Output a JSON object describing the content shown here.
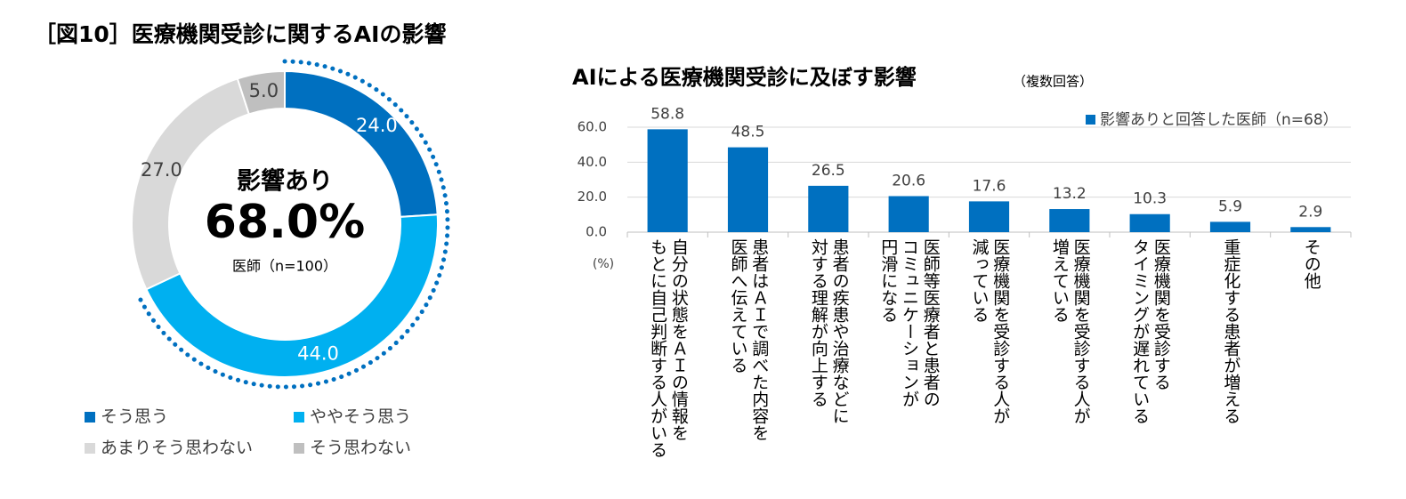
{
  "title": "［図10］医療機関受診に関するAIの影響",
  "chart_data": [
    {
      "type": "donut",
      "categories": [
        "そう思う",
        "ややそう思う",
        "あまりそう思わない",
        "そう思わない"
      ],
      "values": [
        24.0,
        44.0,
        27.0,
        5.0
      ],
      "value_labels": [
        "24.0",
        "44.0",
        "27.0",
        "5.0"
      ],
      "colors": [
        "#0070c0",
        "#00b0f0",
        "#d9d9d9",
        "#bfbfbf"
      ],
      "center_text": [
        "影響あり",
        "68.0%",
        "医師（n=100）"
      ]
    },
    {
      "type": "bar",
      "title": "AIによる医療機関受診に及ぼす影響",
      "subtitle": "（複数回答）",
      "y_label": "(%)",
      "categories": [
        "自分の状態をＡＩの情報を\nもとに自己判断する人がいる",
        "患者はＡＩで調べた内容を\n医師へ伝えている",
        "患者の疾患や治療などに\n対する理解が向上する",
        "医師等医療者と患者の\nコミュニケーションが\n円滑になる",
        "医療機関を受診する人が\n減っている",
        "医療機関を受診する人が\n増えている",
        "医療機関を受診する\nタイミングが遅れている",
        "重症化する患者が増える",
        "その他"
      ],
      "series": [
        {
          "name": "影響ありと回答した医師（n=68）",
          "color": "#0070c0",
          "values": [
            58.8,
            48.5,
            26.5,
            20.6,
            17.6,
            13.2,
            10.3,
            5.9,
            2.9
          ]
        }
      ],
      "ylim": [
        0,
        60
      ],
      "yticks": [
        {
          "value": 0,
          "label": "0.0"
        },
        {
          "value": 20,
          "label": "20.0"
        },
        {
          "value": 40,
          "label": "40.0"
        },
        {
          "value": 60,
          "label": "60.0"
        }
      ],
      "grid": true
    }
  ]
}
